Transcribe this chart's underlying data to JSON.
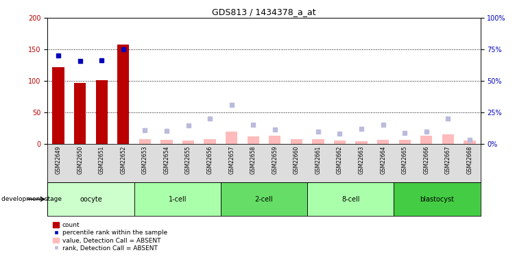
{
  "title": "GDS813 / 1434378_a_at",
  "samples": [
    "GSM22649",
    "GSM22650",
    "GSM22651",
    "GSM22652",
    "GSM22653",
    "GSM22654",
    "GSM22655",
    "GSM22656",
    "GSM22657",
    "GSM22658",
    "GSM22659",
    "GSM22660",
    "GSM22661",
    "GSM22662",
    "GSM22663",
    "GSM22664",
    "GSM22665",
    "GSM22666",
    "GSM22667",
    "GSM22668"
  ],
  "count_values": [
    122,
    97,
    101,
    158,
    0,
    0,
    0,
    0,
    0,
    0,
    0,
    0,
    0,
    0,
    0,
    0,
    0,
    0,
    0,
    0
  ],
  "rank_values": [
    140,
    132,
    133,
    150,
    0,
    0,
    0,
    0,
    0,
    0,
    0,
    0,
    0,
    0,
    0,
    0,
    0,
    0,
    0,
    0
  ],
  "absent_value": [
    0,
    0,
    0,
    0,
    8,
    6,
    5,
    8,
    20,
    12,
    13,
    8,
    8,
    5,
    4,
    7,
    6,
    13,
    15,
    5
  ],
  "absent_rank": [
    0,
    0,
    0,
    0,
    22,
    21,
    29,
    40,
    62,
    31,
    23,
    0,
    20,
    16,
    24,
    30,
    17,
    20,
    40,
    6
  ],
  "stages": [
    {
      "label": "oocyte",
      "start": 0,
      "end": 4,
      "color": "#ccffcc"
    },
    {
      "label": "1-cell",
      "start": 4,
      "end": 8,
      "color": "#aaffaa"
    },
    {
      "label": "2-cell",
      "start": 8,
      "end": 12,
      "color": "#66ee66"
    },
    {
      "label": "8-cell",
      "start": 12,
      "end": 16,
      "color": "#aaffaa"
    },
    {
      "label": "blastocyst",
      "start": 16,
      "end": 20,
      "color": "#44cc44"
    }
  ],
  "ylim_left": [
    0,
    200
  ],
  "ylim_right": [
    0,
    100
  ],
  "yticks_left": [
    0,
    50,
    100,
    150,
    200
  ],
  "yticks_right": [
    0,
    25,
    50,
    75,
    100
  ],
  "count_color": "#bb0000",
  "rank_color": "#0000bb",
  "absent_value_color": "#ffbbbb",
  "absent_rank_color": "#bbbbdd",
  "bar_width": 0.55
}
